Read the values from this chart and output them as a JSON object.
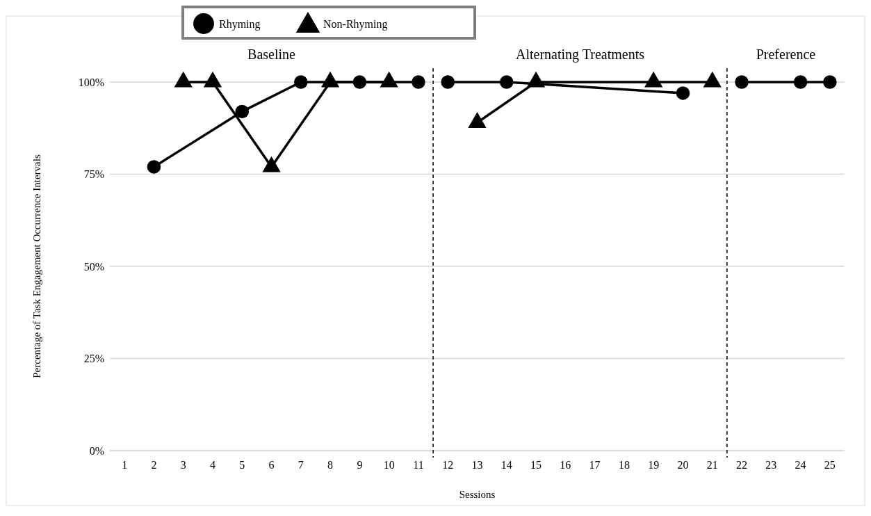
{
  "chart_data": {
    "type": "line",
    "xlabel": "Sessions",
    "ylabel": "Percentage of Task Engagement Occurrence Intervals",
    "xlim": [
      0.5,
      25.5
    ],
    "xticks": [
      1,
      2,
      3,
      4,
      5,
      6,
      7,
      8,
      9,
      10,
      11,
      12,
      13,
      14,
      15,
      16,
      17,
      18,
      19,
      20,
      21,
      22,
      23,
      24,
      25
    ],
    "ylim": [
      0,
      100
    ],
    "yticks": [
      {
        "value": 0,
        "label": "0%"
      },
      {
        "value": 25,
        "label": "25%"
      },
      {
        "value": 50,
        "label": "50%"
      },
      {
        "value": 75,
        "label": "75%"
      },
      {
        "value": 100,
        "label": "100%"
      }
    ],
    "grid": "y",
    "legend": "top",
    "series": [
      {
        "name": "Rhyming",
        "color": "#000000",
        "marker": "circle",
        "x": [
          2,
          5,
          7,
          9,
          11,
          12,
          14,
          20,
          22,
          24,
          25
        ],
        "values": [
          77,
          92,
          100,
          100,
          100,
          100,
          100,
          97,
          100,
          100,
          100
        ]
      },
      {
        "name": "Non-Rhyming",
        "color": "#000000",
        "marker": "triangle",
        "x": [
          3,
          4,
          6,
          8,
          10,
          13,
          15,
          19,
          21
        ],
        "values": [
          100,
          100,
          77,
          100,
          100,
          89,
          100,
          100,
          100
        ]
      }
    ],
    "ref_lines": [
      {
        "axis": "x",
        "value": 11.5,
        "line_style": "dashed"
      },
      {
        "axis": "x",
        "value": 21.5,
        "line_style": "dashed"
      }
    ],
    "annotations": [
      "Baseline",
      "Alternating Treatments",
      "Preference"
    ]
  }
}
